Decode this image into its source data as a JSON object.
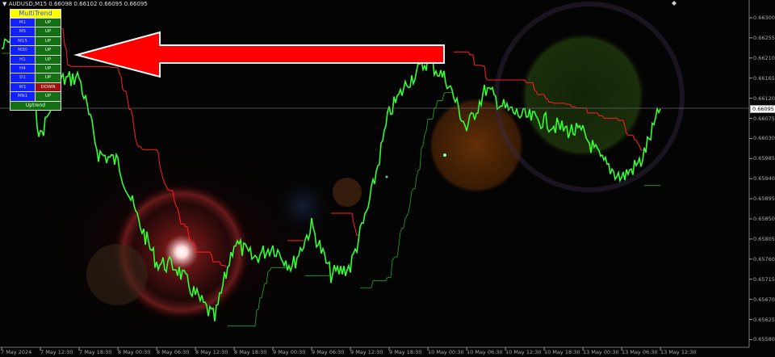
{
  "header": {
    "symbol_line": "AUDUSD,M15  0.66098 0.66102 0.66095 0.66095",
    "menu_icon": "triangle-down-icon"
  },
  "panel": {
    "title": "MultiTrend",
    "rows": [
      {
        "tf": "M1",
        "state": "UP"
      },
      {
        "tf": "M5",
        "state": "UP"
      },
      {
        "tf": "M15",
        "state": "UP"
      },
      {
        "tf": "M30",
        "state": "UP"
      },
      {
        "tf": "H1",
        "state": "UP"
      },
      {
        "tf": "H4",
        "state": "UP"
      },
      {
        "tf": "D1",
        "state": "UP"
      },
      {
        "tf": "W1",
        "state": "DOWN"
      },
      {
        "tf": "MN1",
        "state": "UP"
      }
    ],
    "footer": "Uptrend",
    "colors": {
      "up": "#157015",
      "down": "#a01010",
      "tf": "#1020ff",
      "header": "#ffff00"
    }
  },
  "price_axis": {
    "labels": [
      "0.66300",
      "0.66255",
      "0.66210",
      "0.66165",
      "0.66120",
      "0.66075",
      "0.66030",
      "0.65985",
      "0.65940",
      "0.65895",
      "0.65850",
      "0.65805",
      "0.65760",
      "0.65715",
      "0.65670",
      "0.65625",
      "0.65580"
    ],
    "current": "0.66095"
  },
  "time_axis": {
    "labels": [
      "7 May 2024",
      "7 May 12:30",
      "7 May 18:30",
      "8 May 00:30",
      "8 May 06:30",
      "8 May 12:30",
      "8 May 18:30",
      "9 May 00:30",
      "9 May 06:30",
      "9 May 12:30",
      "9 May 18:30",
      "10 May 00:30",
      "10 May 06:30",
      "10 May 12:30",
      "10 May 18:30",
      "13 May 00:30",
      "13 May 06:30",
      "13 May 12:30"
    ]
  },
  "chart_data": {
    "type": "line",
    "symbol": "AUDUSD",
    "timeframe": "M15",
    "ylim": [
      0.6556,
      0.6634
    ],
    "grid": false,
    "colors": {
      "price": "#33ff33",
      "stop_down": "#ff2020",
      "stop_up": "#22aa22",
      "arrow": "#ff0000"
    },
    "series": [
      {
        "x": [
          "7 May 06:30",
          "7 May 09:30",
          "7 May 12:30",
          "7 May 15:30",
          "7 May 18:30",
          "7 May 21:30",
          "8 May 00:30",
          "8 May 03:30",
          "8 May 06:30",
          "8 May 09:30",
          "8 May 12:30",
          "8 May 15:30",
          "8 May 18:30",
          "8 May 21:30",
          "9 May 00:30",
          "9 May 03:30",
          "9 May 06:30",
          "9 May 09:30",
          "9 May 12:30",
          "9 May 15:30",
          "9 May 18:30",
          "9 May 21:30",
          "10 May 00:30",
          "10 May 03:30",
          "10 May 06:30",
          "10 May 09:30",
          "10 May 12:30",
          "10 May 15:30",
          "10 May 18:30",
          "10 May 21:30",
          "13 May 00:30",
          "13 May 03:30",
          "13 May 06:30",
          "13 May 09:30",
          "13 May 12:30"
        ],
        "values": [
          0.66231,
          0.66267,
          0.66033,
          0.66159,
          0.66168,
          0.65996,
          0.65978,
          0.65852,
          0.65752,
          0.65743,
          0.6568,
          0.65626,
          0.65798,
          0.65761,
          0.65789,
          0.65743,
          0.65834,
          0.65725,
          0.65743,
          0.65888,
          0.66087,
          0.66159,
          0.66204,
          0.66159,
          0.66051,
          0.66141,
          0.66096,
          0.66078,
          0.66069,
          0.66051,
          0.66042,
          0.65978,
          0.65942,
          0.65978,
          0.66096
        ]
      }
    ]
  }
}
